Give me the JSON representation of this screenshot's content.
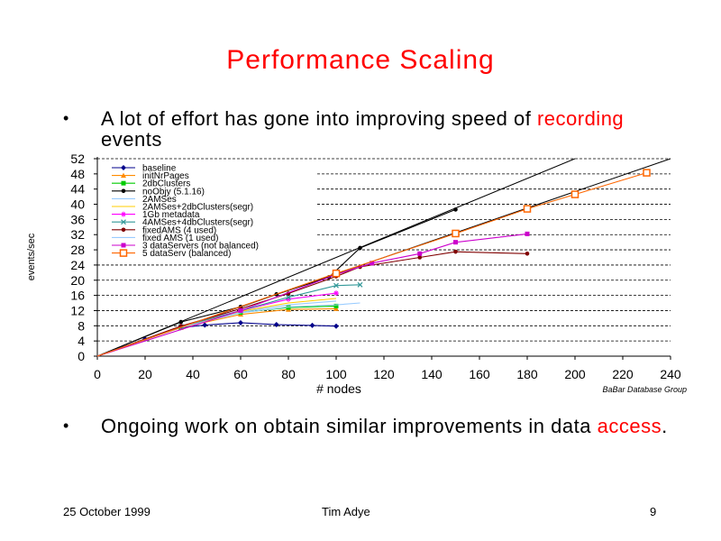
{
  "title": "Performance Scaling",
  "bullets": [
    {
      "marker": "•",
      "pre": "A lot of effort has gone into improving speed of ",
      "highlight": "recording",
      "post": " events"
    },
    {
      "marker": "•",
      "pre": "Ongoing work on obtain similar improvements in data ",
      "highlight": "access",
      "post": "."
    }
  ],
  "footer": {
    "date": "25 October 1999",
    "author": "Tim Adye",
    "page": "9"
  },
  "colors": {
    "title": "#ff0000",
    "highlight": "#ff0000"
  },
  "chart_data": {
    "type": "line",
    "xlabel": "# nodes",
    "ylabel": "events/sec",
    "credit": "BaBar Database Group",
    "xlim": [
      0,
      240
    ],
    "ylim": [
      0,
      52
    ],
    "xticks": [
      0,
      20,
      40,
      60,
      80,
      100,
      120,
      140,
      160,
      180,
      200,
      220,
      240
    ],
    "yticks": [
      0,
      4,
      8,
      12,
      16,
      20,
      24,
      28,
      32,
      36,
      40,
      44,
      48,
      52
    ],
    "grid": "horizontal dashed",
    "legend_position": "top-left",
    "reference_lines": [
      {
        "points": [
          [
            0,
            0
          ],
          [
            200,
            52
          ]
        ],
        "color": "#000000"
      },
      {
        "points": [
          [
            0,
            0
          ],
          [
            240,
            52
          ]
        ],
        "color": "#000000"
      }
    ],
    "series": [
      {
        "name": "baseline",
        "color": "#00008b",
        "marker": "diamond",
        "points": [
          [
            0,
            0
          ],
          [
            20,
            4.5
          ],
          [
            35,
            7.5
          ],
          [
            45,
            8.2
          ],
          [
            60,
            8.8
          ],
          [
            75,
            8.3
          ],
          [
            90,
            8.1
          ],
          [
            100,
            7.9
          ]
        ]
      },
      {
        "name": "initNrPages",
        "color": "#ff8c00",
        "marker": "triangle",
        "points": [
          [
            0,
            0
          ],
          [
            35,
            7.5
          ],
          [
            60,
            11
          ],
          [
            80,
            12.3
          ],
          [
            100,
            12.5
          ]
        ]
      },
      {
        "name": "2dbClusters",
        "color": "#00cc00",
        "marker": "square",
        "points": [
          [
            0,
            0
          ],
          [
            35,
            7.6
          ],
          [
            60,
            11.5
          ],
          [
            80,
            12.8
          ],
          [
            100,
            13.2
          ]
        ]
      },
      {
        "name": "noObjy (5.1.16)",
        "color": "#000000",
        "marker": "circle",
        "points": [
          [
            0,
            0
          ],
          [
            35,
            9
          ],
          [
            60,
            13
          ],
          [
            75,
            16.3
          ],
          [
            97,
            20.8
          ],
          [
            110,
            28.5
          ],
          [
            150,
            38.6
          ]
        ]
      },
      {
        "name": "2AMSes",
        "color": "#99ccff",
        "marker": "none",
        "points": [
          [
            0,
            0
          ],
          [
            35,
            7.6
          ],
          [
            60,
            11.6
          ],
          [
            80,
            13.5
          ],
          [
            100,
            14.5
          ]
        ]
      },
      {
        "name": "2AMSes+2dbClusters(segr)",
        "color": "#ffcc00",
        "marker": "none",
        "points": [
          [
            0,
            0
          ],
          [
            35,
            7.7
          ],
          [
            60,
            11.8
          ],
          [
            80,
            14
          ],
          [
            100,
            15.2
          ]
        ]
      },
      {
        "name": "1Gb metadata",
        "color": "#ff00ff",
        "marker": "star",
        "points": [
          [
            0,
            0
          ],
          [
            35,
            7.8
          ],
          [
            60,
            12
          ],
          [
            80,
            15
          ],
          [
            100,
            16.6
          ]
        ]
      },
      {
        "name": "4AMSes+4dbClusters(segr)",
        "color": "#339999",
        "marker": "x",
        "points": [
          [
            0,
            0
          ],
          [
            35,
            7.8
          ],
          [
            60,
            12
          ],
          [
            80,
            15.5
          ],
          [
            100,
            18.6
          ],
          [
            110,
            18.8
          ]
        ]
      },
      {
        "name": "fixedAMS (4 used)",
        "color": "#800000",
        "marker": "circle",
        "points": [
          [
            0,
            0
          ],
          [
            35,
            7.9
          ],
          [
            60,
            12.5
          ],
          [
            80,
            16.5
          ],
          [
            100,
            21
          ],
          [
            110,
            23.5
          ],
          [
            135,
            26
          ],
          [
            150,
            27.5
          ],
          [
            180,
            27
          ]
        ]
      },
      {
        "name": "fixed AMS (1 used)",
        "color": "#99ccff",
        "marker": "none",
        "points": [
          [
            0,
            0
          ],
          [
            35,
            7.6
          ],
          [
            60,
            11.4
          ],
          [
            80,
            13
          ],
          [
            100,
            13.5
          ],
          [
            110,
            14
          ]
        ]
      },
      {
        "name": "3 dataServers (not balanced)",
        "color": "#cc00cc",
        "marker": "square",
        "points": [
          [
            0,
            0
          ],
          [
            60,
            12
          ],
          [
            100,
            21.5
          ],
          [
            115,
            24.5
          ],
          [
            135,
            27
          ],
          [
            150,
            30
          ],
          [
            180,
            32.2
          ]
        ]
      },
      {
        "name": "5 dataServ (balanced)",
        "color": "#ff6600",
        "marker": "open-square",
        "points": [
          [
            0,
            0
          ],
          [
            100,
            21.8
          ],
          [
            150,
            32.3
          ],
          [
            180,
            38.8
          ],
          [
            200,
            42.6
          ],
          [
            230,
            48.3
          ]
        ]
      }
    ]
  }
}
